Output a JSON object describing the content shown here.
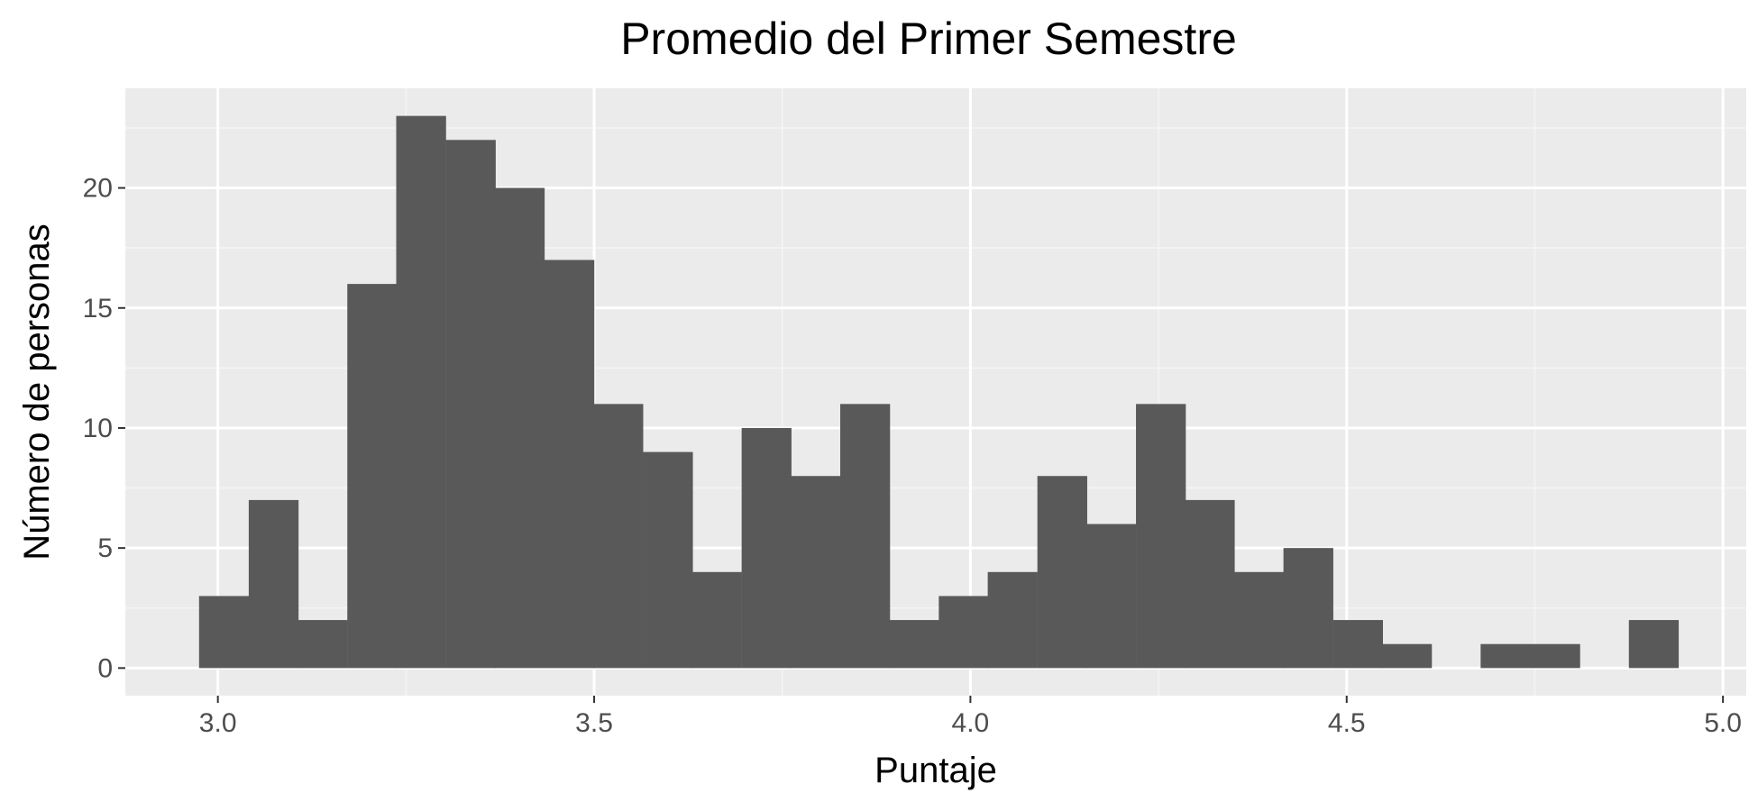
{
  "chart_data": {
    "type": "bar",
    "title": "Promedio del Primer Semestre",
    "xlabel": "Puntaje",
    "ylabel": "Número de personas",
    "bin_width": 0.0655,
    "bins": [
      {
        "x_start": 2.975,
        "count": 3
      },
      {
        "x_start": 3.041,
        "count": 7
      },
      {
        "x_start": 3.106,
        "count": 2
      },
      {
        "x_start": 3.172,
        "count": 16
      },
      {
        "x_start": 3.237,
        "count": 23
      },
      {
        "x_start": 3.303,
        "count": 22
      },
      {
        "x_start": 3.368,
        "count": 20
      },
      {
        "x_start": 3.434,
        "count": 17
      },
      {
        "x_start": 3.499,
        "count": 11
      },
      {
        "x_start": 3.565,
        "count": 9
      },
      {
        "x_start": 3.63,
        "count": 4
      },
      {
        "x_start": 3.696,
        "count": 10
      },
      {
        "x_start": 3.761,
        "count": 8
      },
      {
        "x_start": 3.827,
        "count": 11
      },
      {
        "x_start": 3.892,
        "count": 2
      },
      {
        "x_start": 3.958,
        "count": 3
      },
      {
        "x_start": 4.023,
        "count": 4
      },
      {
        "x_start": 4.089,
        "count": 8
      },
      {
        "x_start": 4.154,
        "count": 6
      },
      {
        "x_start": 4.22,
        "count": 11
      },
      {
        "x_start": 4.285,
        "count": 7
      },
      {
        "x_start": 4.351,
        "count": 4
      },
      {
        "x_start": 4.416,
        "count": 5
      },
      {
        "x_start": 4.482,
        "count": 2
      },
      {
        "x_start": 4.547,
        "count": 1
      },
      {
        "x_start": 4.613,
        "count": 0
      },
      {
        "x_start": 4.678,
        "count": 1
      },
      {
        "x_start": 4.744,
        "count": 1
      },
      {
        "x_start": 4.809,
        "count": 0
      },
      {
        "x_start": 4.875,
        "count": 2
      }
    ],
    "xlim": [
      2.877,
      5.031
    ],
    "ylim": [
      -1.15,
      24.15
    ],
    "x_ticks": [
      {
        "value": 3.0,
        "label": "3.0"
      },
      {
        "value": 3.5,
        "label": "3.5"
      },
      {
        "value": 4.0,
        "label": "4.0"
      },
      {
        "value": 4.5,
        "label": "4.5"
      },
      {
        "value": 5.0,
        "label": "5.0"
      }
    ],
    "y_ticks": [
      {
        "value": 0,
        "label": "0"
      },
      {
        "value": 5,
        "label": "5"
      },
      {
        "value": 10,
        "label": "10"
      },
      {
        "value": 15,
        "label": "15"
      },
      {
        "value": 20,
        "label": "20"
      }
    ],
    "grid": true,
    "colors": {
      "bar_fill": "#595959",
      "panel_background": "#ebebeb",
      "grid_major": "#ffffff",
      "grid_minor": "#f5f5f5",
      "tick_label": "#4d4d4d",
      "tick_mark": "#333333"
    }
  }
}
